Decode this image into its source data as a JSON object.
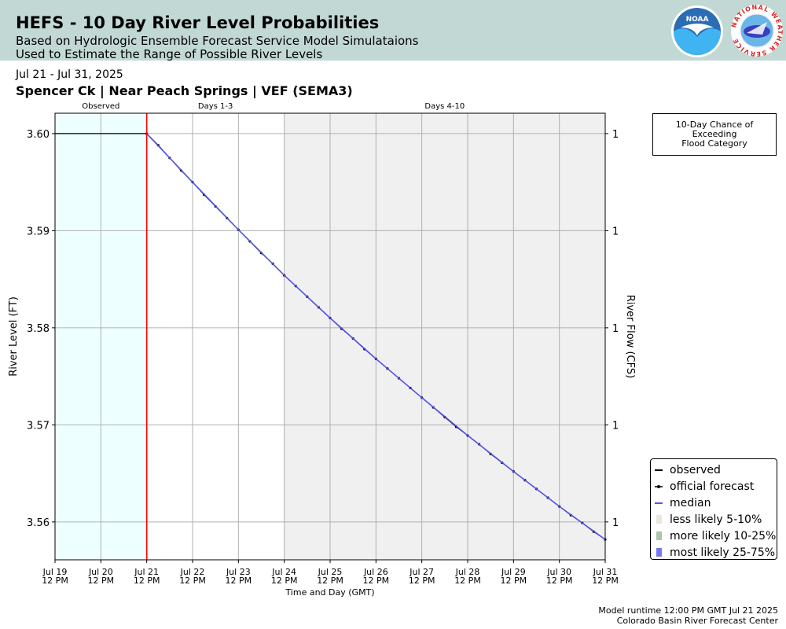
{
  "header": {
    "title": "HEFS - 10 Day River Level Probabilities",
    "subtitle1": "Based on Hydrologic Ensemble Forecast Service Model Simulataions",
    "subtitle2": "Used to Estimate the Range of Possible River Levels",
    "noaa_logo_text": "NOAA",
    "nws_logo_text": "NATIONAL WEATHER SERVICE"
  },
  "date_range": "Jul 21 - Jul 31, 2025",
  "station_line": "Spencer Ck | Near Peach Springs | VEF (SEMA3)",
  "flood_box": {
    "line1": "10-Day Chance of",
    "line2": "Exceeding",
    "line3": "Flood Category"
  },
  "legend": [
    {
      "label": "observed",
      "color": "#000000",
      "kind": "line"
    },
    {
      "label": "official forecast",
      "color": "#000000",
      "kind": "line-dot"
    },
    {
      "label": "median",
      "color": "#5555ee",
      "kind": "line"
    },
    {
      "label": "less likely 5-10%",
      "color": "#eae6da",
      "kind": "patch"
    },
    {
      "label": "more likely 10-25%",
      "color": "#a8c8a8",
      "kind": "patch"
    },
    {
      "label": "most likely 25-75%",
      "color": "#7777ee",
      "kind": "patch"
    }
  ],
  "footer": {
    "line1": "Model runtime 12:00 PM GMT Jul 21 2025",
    "line2": "Colorado Basin River Forecast Center"
  },
  "chart_data": {
    "type": "line",
    "xlabel": "Time and Day (GMT)",
    "ylabel": "River Level (FT)",
    "ylabel_right": "River Flow (CFS)",
    "x_range_days": [
      0,
      12
    ],
    "ylim": [
      3.5561,
      3.6021
    ],
    "x_ticks": [
      {
        "day": 0,
        "label1": "Jul 19",
        "label2": "12 PM"
      },
      {
        "day": 1,
        "label1": "Jul 20",
        "label2": "12 PM"
      },
      {
        "day": 2,
        "label1": "Jul 21",
        "label2": "12 PM"
      },
      {
        "day": 3,
        "label1": "Jul 22",
        "label2": "12 PM"
      },
      {
        "day": 4,
        "label1": "Jul 23",
        "label2": "12 PM"
      },
      {
        "day": 5,
        "label1": "Jul 24",
        "label2": "12 PM"
      },
      {
        "day": 6,
        "label1": "Jul 25",
        "label2": "12 PM"
      },
      {
        "day": 7,
        "label1": "Jul 26",
        "label2": "12 PM"
      },
      {
        "day": 8,
        "label1": "Jul 27",
        "label2": "12 PM"
      },
      {
        "day": 9,
        "label1": "Jul 28",
        "label2": "12 PM"
      },
      {
        "day": 10,
        "label1": "Jul 29",
        "label2": "12 PM"
      },
      {
        "day": 11,
        "label1": "Jul 30",
        "label2": "12 PM"
      },
      {
        "day": 12,
        "label1": "Jul 31",
        "label2": "12 PM"
      }
    ],
    "y_ticks": [
      {
        "value": 3.56,
        "label": "3.56"
      },
      {
        "value": 3.57,
        "label": "3.57"
      },
      {
        "value": 3.58,
        "label": "3.58"
      },
      {
        "value": 3.59,
        "label": "3.59"
      },
      {
        "value": 3.6,
        "label": "3.60"
      }
    ],
    "y_ticks_right": [
      {
        "value": 3.56,
        "label": "1"
      },
      {
        "value": 3.57,
        "label": "1"
      },
      {
        "value": 3.58,
        "label": "1"
      },
      {
        "value": 3.59,
        "label": "1"
      },
      {
        "value": 3.6,
        "label": "1"
      }
    ],
    "regions": [
      {
        "label": "Observed",
        "from": 0,
        "to": 2,
        "color": "#eeffff"
      },
      {
        "label": "Days 1-3",
        "from": 2,
        "to": 5,
        "color": "#ffffff"
      },
      {
        "label": "Days 4-10",
        "from": 5,
        "to": 12,
        "color": "#f0f0f0"
      }
    ],
    "forecast_start_day": 2,
    "grid": true,
    "legend_position": "lower-right",
    "series": [
      {
        "name": "observed",
        "color": "#000000",
        "x": [
          0,
          2
        ],
        "y": [
          3.6,
          3.6
        ]
      },
      {
        "name": "official forecast",
        "color": "#000000",
        "x": [
          2,
          2.25,
          2.5,
          2.75,
          3,
          3.25,
          3.5,
          3.75,
          4,
          4.25,
          4.5,
          4.75,
          5,
          5.25,
          5.5,
          5.75,
          6,
          6.25,
          6.5,
          6.75,
          7,
          7.25,
          7.5,
          7.75,
          8,
          8.25,
          8.5,
          8.75,
          9,
          9.25,
          9.5,
          9.75,
          10,
          10.25,
          10.5,
          10.75,
          11,
          11.25,
          11.5,
          11.75,
          12
        ],
        "y": [
          3.6,
          3.5988,
          3.5975,
          3.5962,
          3.595,
          3.5937,
          3.5925,
          3.5913,
          3.5901,
          3.5889,
          3.5877,
          3.5866,
          3.5854,
          3.5843,
          3.5832,
          3.5821,
          3.581,
          3.5799,
          3.5789,
          3.5778,
          3.5768,
          3.5758,
          3.5748,
          3.5738,
          3.5728,
          3.5718,
          3.5708,
          3.5698,
          3.5689,
          3.568,
          3.567,
          3.5661,
          3.5652,
          3.5643,
          3.5634,
          3.5625,
          3.5616,
          3.5607,
          3.5599,
          3.559,
          3.5582
        ]
      },
      {
        "name": "median",
        "color": "#5555ee",
        "x": [
          2,
          3,
          4,
          5,
          6,
          7,
          8,
          9,
          10,
          11,
          12
        ],
        "y": [
          3.6,
          3.595,
          3.5901,
          3.5854,
          3.581,
          3.5768,
          3.5728,
          3.5689,
          3.5652,
          3.5616,
          3.5582
        ]
      }
    ]
  }
}
